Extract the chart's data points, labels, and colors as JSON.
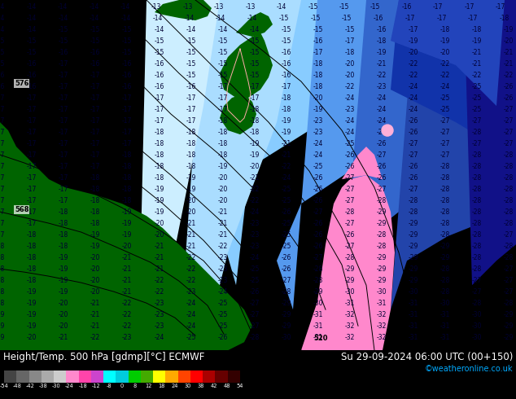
{
  "title_left": "Height/Temp. 500 hPa [gdmp][°C] ECMWF",
  "title_right": "Su 29-09-2024 06:00 UTC (00+150)",
  "credit": "©weatheronline.co.uk",
  "bg_ocean_cyan": "#00CCFF",
  "bg_land_green": "#006400",
  "blue_medium": "#4444DD",
  "blue_dark": "#2222BB",
  "blue_very_dark": "#000088",
  "blue_light": "#88AAFF",
  "blue_pale": "#AACCFF",
  "cyan_light": "#66DDFF",
  "pink_color": "#FF88CC",
  "label_color_dark": "#000033",
  "label_fontsize": 5.5,
  "title_fontsize": 8.5,
  "colorbar_colors": [
    "#444444",
    "#666666",
    "#888888",
    "#AAAAAA",
    "#CCCCCC",
    "#FF88CC",
    "#FF44AA",
    "#CC44CC",
    "#00FFFF",
    "#00CCDD",
    "#00CC00",
    "#44AA00",
    "#FFFF00",
    "#FFAA00",
    "#FF4400",
    "#FF0000",
    "#AA0000",
    "#660000",
    "#330000"
  ],
  "colorbar_ticks": [
    "-54",
    "-48",
    "-42",
    "-38",
    "-30",
    "-24",
    "-18",
    "-12",
    "-8",
    "0",
    "8",
    "12",
    "18",
    "24",
    "30",
    "38",
    "42",
    "48",
    "54"
  ]
}
